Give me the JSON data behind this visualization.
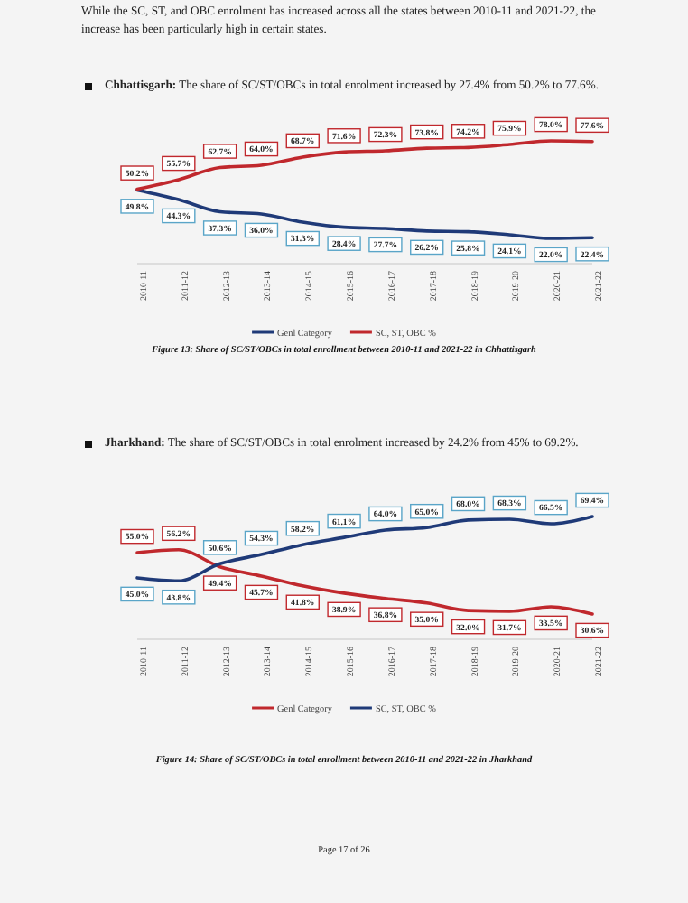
{
  "chart_data": [
    {
      "type": "line",
      "title": "Figure 13: Share of SC/ST/OBCs in total enrollment between 2010-11 and 2021-22 in Chhattisgarh",
      "annotations": [
        "While the SC, ST, and OBC enrolment has increased across all the states between 2010-11 and 2021-22, the increase has been particularly high in certain states.",
        "Chhattisgarh: The share of SC/ST/OBCs in total enrolment increased by 27.4% from 50.2% to 77.6%."
      ],
      "categories": [
        "2010-11",
        "2011-12",
        "2012-13",
        "2013-14",
        "2014-15",
        "2015-16",
        "2016-17",
        "2017-18",
        "2018-19",
        "2019-20",
        "2020-21",
        "2021-22"
      ],
      "series": [
        {
          "name": "Genl Category",
          "color": "#1f3a78",
          "values": [
            49.8,
            44.3,
            37.3,
            36.0,
            31.3,
            28.4,
            27.7,
            26.2,
            25.8,
            24.1,
            22.0,
            22.4
          ],
          "value_labels": [
            "49.8%",
            "44.3%",
            "37.3%",
            "36.0%",
            "31.3%",
            "28.4%",
            "27.7%",
            "26.2%",
            "25.8%",
            "24.1%",
            "22.0%",
            "22.4%"
          ]
        },
        {
          "name": "SC, ST, OBC %",
          "color": "#c0282d",
          "values": [
            50.2,
            55.7,
            62.7,
            64.0,
            68.7,
            71.6,
            72.3,
            73.8,
            74.2,
            75.9,
            78.0,
            77.6
          ],
          "value_labels": [
            "50.2%",
            "55.7%",
            "62.7%",
            "64.0%",
            "68.7%",
            "71.6%",
            "72.3%",
            "73.8%",
            "74.2%",
            "75.9%",
            "78.0%",
            "77.6%"
          ]
        }
      ],
      "legend": "bottom",
      "marker": "none",
      "line_style": "solid"
    },
    {
      "type": "line",
      "title": "Figure 14: Share of SC/ST/OBCs in total enrollment between 2010-11 and 2021-22 in Jharkhand",
      "annotations": [
        "Jharkhand: The share of SC/ST/OBCs in total enrolment increased by 24.2% from 45% to 69.2%.",
        "Page 17 of 26"
      ],
      "categories": [
        "2010-11",
        "2011-12",
        "2012-13",
        "2013-14",
        "2014-15",
        "2015-16",
        "2016-17",
        "2017-18",
        "2018-19",
        "2019-20",
        "2020-21",
        "2021-22"
      ],
      "series": [
        {
          "name": "Genl Category",
          "color": "#c0282d",
          "values": [
            55.0,
            56.2,
            49.4,
            45.7,
            41.8,
            38.9,
            36.8,
            35.0,
            32.0,
            31.7,
            33.5,
            30.6
          ],
          "value_labels": [
            "55.0%",
            "56.2%",
            "49.4%",
            "45.7%",
            "41.8%",
            "38.9%",
            "36.8%",
            "35.0%",
            "32.0%",
            "31.7%",
            "33.5%",
            "30.6%"
          ]
        },
        {
          "name": "SC, ST, OBC %",
          "color": "#1f3a78",
          "values": [
            45.0,
            43.8,
            50.6,
            54.3,
            58.2,
            61.1,
            64.0,
            65.0,
            68.0,
            68.3,
            66.5,
            69.4
          ],
          "value_labels": [
            "45.0%",
            "43.8%",
            "50.6%",
            "54.3%",
            "58.2%",
            "61.1%",
            "64.0%",
            "65.0%",
            "68.0%",
            "68.3%",
            "66.5%",
            "69.4%"
          ]
        }
      ],
      "legend": "bottom",
      "marker": "none",
      "line_style": "solid"
    }
  ]
}
